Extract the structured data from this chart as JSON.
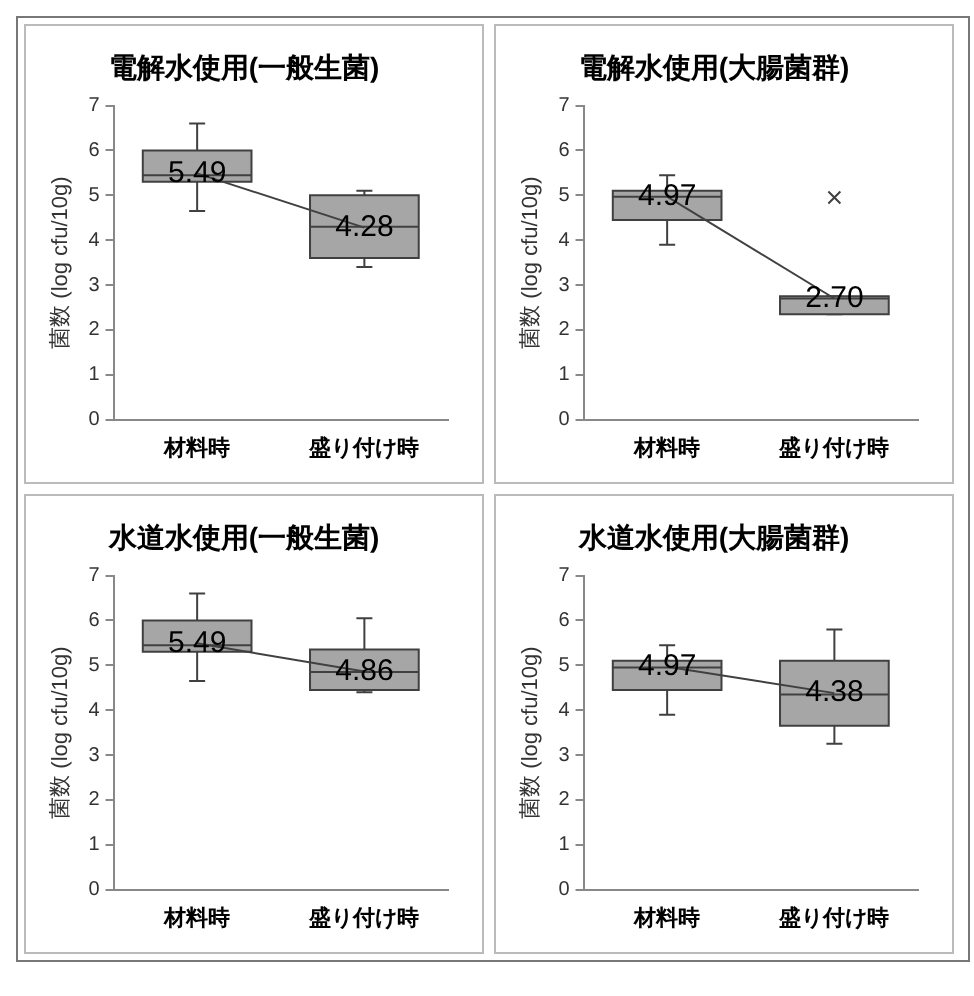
{
  "chart_data": [
    {
      "type": "box",
      "title": "電解水使用(一般生菌)",
      "ylabel": "菌数 (log cfu/10g)",
      "categories": [
        "材料時",
        "盛り付け時"
      ],
      "ylim": [
        0,
        7
      ],
      "yticks": [
        0,
        1,
        2,
        3,
        4,
        5,
        6,
        7
      ],
      "grid": false,
      "legend": false,
      "marker": "none",
      "series": [
        {
          "type": "box",
          "color": "#a6a6a6",
          "boxes": [
            {
              "low": 4.65,
              "q1": 5.3,
              "median": 5.45,
              "q3": 6.0,
              "high": 6.6
            },
            {
              "low": 3.4,
              "q1": 3.6,
              "median": 4.3,
              "q3": 5.0,
              "high": 5.1
            }
          ]
        },
        {
          "type": "line",
          "color": "#404040",
          "values": [
            5.49,
            4.28
          ],
          "value_labels": [
            "5.49",
            "4.28"
          ]
        }
      ]
    },
    {
      "type": "box",
      "title": "電解水使用(大腸菌群)",
      "ylabel": "菌数 (log cfu/10g)",
      "categories": [
        "材料時",
        "盛り付け時"
      ],
      "ylim": [
        0,
        7
      ],
      "yticks": [
        0,
        1,
        2,
        3,
        4,
        5,
        6,
        7
      ],
      "grid": false,
      "legend": false,
      "marker": "none",
      "series": [
        {
          "type": "box",
          "color": "#a6a6a6",
          "boxes": [
            {
              "low": 3.9,
              "q1": 4.45,
              "median": 4.97,
              "q3": 5.1,
              "high": 5.45
            },
            {
              "low": 2.35,
              "q1": 2.35,
              "median": 2.7,
              "q3": 2.75,
              "high": 2.75,
              "outliers": [
                4.95
              ]
            }
          ]
        },
        {
          "type": "line",
          "color": "#404040",
          "values": [
            4.97,
            2.7
          ],
          "value_labels": [
            "4.97",
            "2.70"
          ]
        }
      ]
    },
    {
      "type": "box",
      "title": "水道水使用(一般生菌)",
      "ylabel": "菌数 (log cfu/10g)",
      "categories": [
        "材料時",
        "盛り付け時"
      ],
      "ylim": [
        0,
        7
      ],
      "yticks": [
        0,
        1,
        2,
        3,
        4,
        5,
        6,
        7
      ],
      "grid": false,
      "legend": false,
      "marker": "none",
      "series": [
        {
          "type": "box",
          "color": "#a6a6a6",
          "boxes": [
            {
              "low": 4.65,
              "q1": 5.3,
              "median": 5.45,
              "q3": 6.0,
              "high": 6.6
            },
            {
              "low": 4.4,
              "q1": 4.45,
              "median": 4.85,
              "q3": 5.35,
              "high": 6.05
            }
          ]
        },
        {
          "type": "line",
          "color": "#404040",
          "values": [
            5.49,
            4.86
          ],
          "value_labels": [
            "5.49",
            "4.86"
          ]
        }
      ]
    },
    {
      "type": "box",
      "title": "水道水使用(大腸菌群)",
      "ylabel": "菌数 (log cfu/10g)",
      "categories": [
        "材料時",
        "盛り付け時"
      ],
      "ylim": [
        0,
        7
      ],
      "yticks": [
        0,
        1,
        2,
        3,
        4,
        5,
        6,
        7
      ],
      "grid": false,
      "legend": false,
      "marker": "none",
      "series": [
        {
          "type": "box",
          "color": "#a6a6a6",
          "boxes": [
            {
              "low": 3.9,
              "q1": 4.45,
              "median": 4.95,
              "q3": 5.1,
              "high": 5.45
            },
            {
              "low": 3.25,
              "q1": 3.65,
              "median": 4.35,
              "q3": 5.1,
              "high": 5.8
            }
          ]
        },
        {
          "type": "line",
          "color": "#404040",
          "values": [
            4.97,
            4.38
          ],
          "value_labels": [
            "4.97",
            "4.38"
          ]
        }
      ]
    }
  ]
}
